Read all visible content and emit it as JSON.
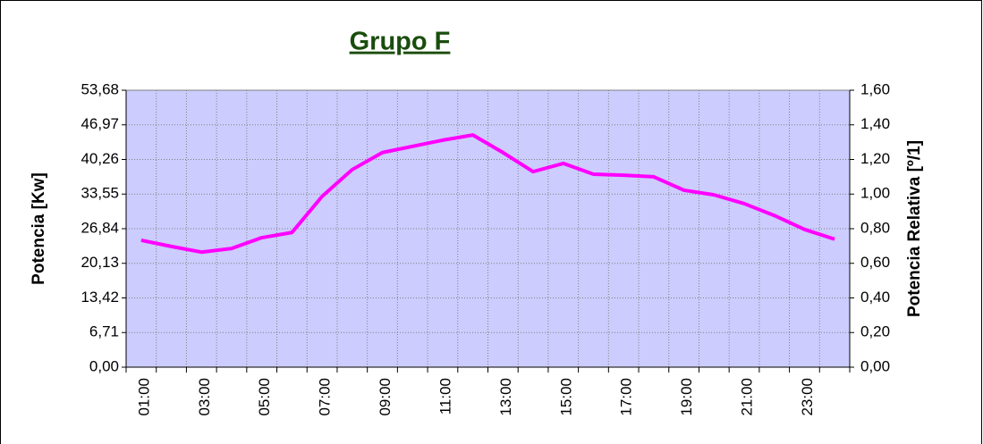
{
  "chart_data": {
    "type": "line",
    "title": "Grupo F",
    "y_label": "Potencia [Kw]",
    "y2_label": "Potencia Relativa [º/1]",
    "categories": [
      "01:00",
      null,
      "03:00",
      null,
      "05:00",
      null,
      "07:00",
      null,
      "09:00",
      null,
      "11:00",
      null,
      "13:00",
      null,
      "15:00",
      null,
      "17:00",
      null,
      "19:00",
      null,
      "21:00",
      null,
      "23:00",
      null
    ],
    "series": [
      {
        "color": "#ff00ff",
        "values": [
          24.6,
          23.4,
          22.3,
          23.0,
          25.1,
          26.1,
          33.1,
          38.3,
          41.6,
          42.8,
          44.0,
          45.0,
          41.6,
          37.9,
          39.5,
          37.4,
          37.2,
          36.9,
          34.3,
          33.4,
          31.7,
          29.4,
          26.7,
          24.8
        ]
      }
    ],
    "ylim": [
      0,
      53.68
    ],
    "yticks": [
      {
        "value": 0,
        "label": "0,00"
      },
      {
        "value": 6.71,
        "label": "6,71"
      },
      {
        "value": 13.42,
        "label": "13,42"
      },
      {
        "value": 20.13,
        "label": "20,13"
      },
      {
        "value": 26.84,
        "label": "26,84"
      },
      {
        "value": 33.55,
        "label": "33,55"
      },
      {
        "value": 40.26,
        "label": "40,26"
      },
      {
        "value": 46.97,
        "label": "46,97"
      },
      {
        "value": 53.68,
        "label": "53,68"
      }
    ],
    "y2lim": [
      0,
      1.6
    ],
    "y2ticks": [
      {
        "value": 0,
        "label": "0,00"
      },
      {
        "value": 0.2,
        "label": "0,20"
      },
      {
        "value": 0.4,
        "label": "0,40"
      },
      {
        "value": 0.6,
        "label": "0,60"
      },
      {
        "value": 0.8,
        "label": "0,80"
      },
      {
        "value": 1.0,
        "label": "1,00"
      },
      {
        "value": 1.2,
        "label": "1,20"
      },
      {
        "value": 1.4,
        "label": "1,40"
      },
      {
        "value": 1.6,
        "label": "1,60"
      }
    ],
    "grid": true,
    "plot_background": "#ccccff"
  }
}
